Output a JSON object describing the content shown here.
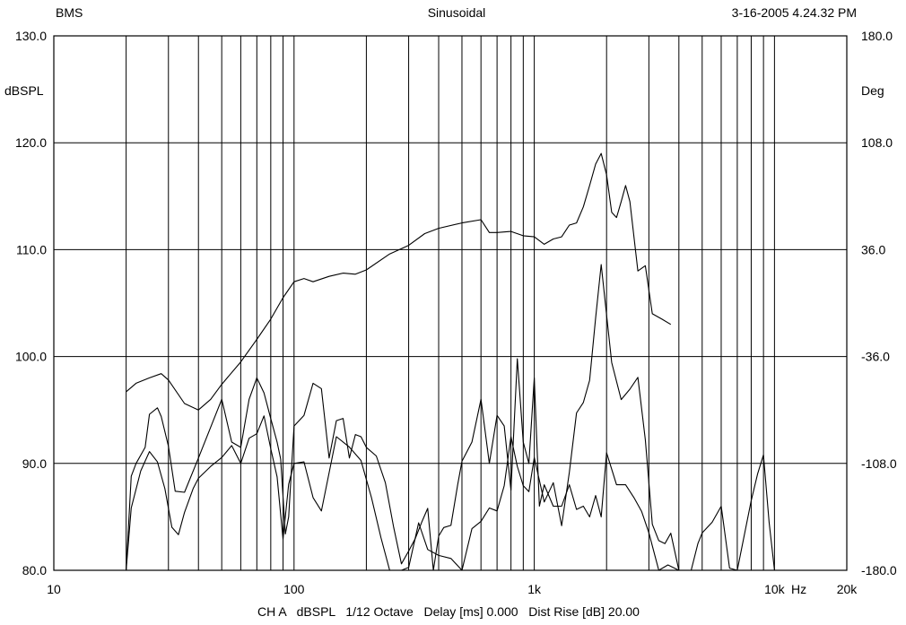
{
  "header": {
    "left": "BMS",
    "center": "Sinusoidal",
    "right": "3-16-2005 4.24.32 PM"
  },
  "footer": {
    "text": "CH A   dBSPL   1/12 Octave   Delay [ms] 0.000   Dist Rise [dB] 20.00"
  },
  "chart_data": {
    "type": "line",
    "xscale": "log",
    "xlim": [
      10,
      20000
    ],
    "ylim": [
      80,
      130
    ],
    "y2lim": [
      -180,
      180
    ],
    "grid": true,
    "ylabel": "dBSPL",
    "y2label": "Deg",
    "xunit": "Hz",
    "x_tick_labels": [
      {
        "value": 10,
        "label": "10"
      },
      {
        "value": 100,
        "label": "100"
      },
      {
        "value": 1000,
        "label": "1k"
      },
      {
        "value": 10000,
        "label": "10k"
      },
      {
        "value": 20000,
        "label": "20k"
      }
    ],
    "y_tick_labels": [
      "80.0",
      "90.0",
      "100.0",
      "110.0",
      "120.0",
      "130.0"
    ],
    "y2_tick_labels": [
      "-180.0",
      "-108.0",
      "-36.0",
      "36.0",
      "108.0",
      "180.0"
    ],
    "series": [
      {
        "role": "spl",
        "x": [
          20,
          22,
          25,
          28,
          30,
          35,
          40,
          45,
          50,
          60,
          70,
          80,
          90,
          100,
          110,
          120,
          140,
          160,
          180,
          200,
          250,
          300,
          350,
          400,
          500,
          600,
          650,
          700,
          800,
          900,
          1000,
          1100,
          1200,
          1300,
          1400,
          1500,
          1600,
          1700,
          1800,
          1900,
          2000,
          2100,
          2200,
          2300,
          2400,
          2500,
          2700,
          2900,
          3100,
          3400,
          3700
        ],
        "y": [
          96.7,
          97.5,
          98.0,
          98.4,
          97.8,
          95.6,
          95.0,
          96.0,
          97.4,
          99.5,
          101.6,
          103.5,
          105.5,
          107.0,
          107.3,
          107.0,
          107.5,
          107.8,
          107.7,
          108.1,
          109.6,
          110.4,
          111.5,
          112.0,
          112.5,
          112.8,
          111.6,
          111.6,
          111.7,
          111.3,
          111.2,
          110.5,
          111.0,
          111.2,
          112.3,
          112.5,
          114.0,
          116.0,
          118.0,
          119.0,
          117.0,
          113.5,
          113.0,
          114.5,
          116.0,
          114.5,
          108.0,
          108.5,
          104.0,
          103.5,
          103.0
        ]
      },
      {
        "role": "phase",
        "x": [
          20,
          21,
          23,
          25,
          27,
          29,
          31,
          33,
          35,
          38,
          40,
          45,
          50,
          55,
          60,
          65,
          70,
          75,
          80,
          85,
          90,
          95,
          100,
          110,
          120,
          130,
          150,
          170,
          190,
          210,
          230,
          250,
          280,
          300,
          330,
          360,
          400,
          450,
          500,
          550,
          600,
          650,
          700,
          750,
          800,
          850,
          900,
          950,
          1000,
          1100,
          1200,
          1300,
          1400,
          1500,
          1600,
          1700,
          1800,
          1900,
          2000,
          2100,
          2300,
          2500,
          2700,
          2900,
          3100,
          3300,
          3500,
          3700,
          4000,
          4500,
          5000,
          5500,
          6000,
          7000,
          8000,
          9000,
          10000
        ],
        "y": [
          -180,
          -138,
          -113,
          -100,
          -107,
          -125,
          -151,
          -156,
          -141,
          -125,
          -118,
          -110,
          -104,
          -96,
          -108,
          -91,
          -88,
          -76,
          -98,
          -117,
          -159,
          -122,
          -108,
          -107,
          -131,
          -140,
          -90,
          -97,
          -106,
          -131,
          -158,
          -180,
          -180,
          -178,
          -148,
          -166,
          -170,
          -172,
          -180,
          -152,
          -147,
          -138,
          -140,
          -123,
          -90,
          -110,
          -123,
          -127,
          -104,
          -134,
          -121,
          -150,
          -114,
          -74,
          -67,
          -52,
          -10,
          26,
          -8,
          -40,
          -65,
          -58,
          -50,
          -92,
          -149,
          -160,
          -162,
          -155,
          -180,
          -180,
          -180,
          -180,
          -180,
          -180,
          -180,
          -180,
          -180
        ]
      },
      {
        "role": "distortion",
        "x": [
          20,
          21,
          22,
          24,
          25,
          27,
          28,
          30,
          32,
          35,
          40,
          45,
          50,
          55,
          60,
          65,
          70,
          75,
          80,
          85,
          88,
          92,
          95,
          100,
          110,
          120,
          130,
          140,
          150,
          160,
          170,
          180,
          190,
          200,
          220,
          240,
          260,
          280,
          300,
          320,
          340,
          360,
          380,
          400,
          420,
          450,
          480,
          500,
          550,
          600,
          650,
          700,
          750,
          800,
          850,
          900,
          950,
          1000,
          1050,
          1100,
          1200,
          1300,
          1400,
          1500,
          1600,
          1700,
          1800,
          1900,
          2000,
          2200,
          2400,
          2600,
          2800,
          3000,
          3300,
          3600,
          4000,
          4500,
          4800,
          5000,
          5500,
          6000,
          6500,
          7000,
          8000,
          8500,
          9000,
          9500,
          10000,
          11000,
          12000
        ],
        "y": [
          80,
          88.8,
          90,
          91.5,
          94.6,
          95.2,
          94.4,
          91.6,
          87.4,
          87.3,
          90.5,
          93.4,
          96,
          92,
          91.5,
          96,
          98,
          96.6,
          94.2,
          92,
          90.4,
          83.4,
          85,
          93.5,
          94.5,
          97.5,
          97,
          90.5,
          94,
          94.2,
          90.5,
          92.7,
          92.5,
          91.5,
          90.7,
          88.2,
          84,
          80.6,
          81.8,
          83,
          84.5,
          85.8,
          80,
          83.2,
          84,
          84.2,
          88,
          90.2,
          92,
          96,
          90,
          94.5,
          93.5,
          87.5,
          99.8,
          92,
          90,
          98,
          86,
          88,
          86,
          86,
          88,
          85.7,
          86,
          85,
          87,
          85,
          91,
          88,
          88,
          86.8,
          85.5,
          83.5,
          80,
          80.5,
          80,
          80,
          82.5,
          83.5,
          84.5,
          86,
          80.2,
          80,
          86.5,
          89,
          90.8,
          84.5,
          80,
          80,
          80
        ]
      }
    ]
  }
}
